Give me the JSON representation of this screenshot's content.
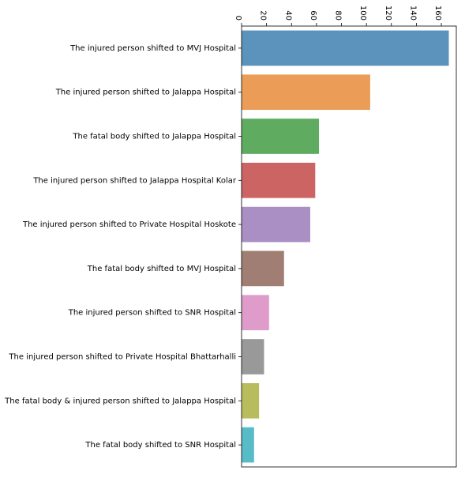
{
  "chart_data": {
    "type": "bar",
    "orientation": "horizontal",
    "xaxis_position": "top",
    "tick_label_rotation": -90,
    "title": "",
    "xlabel": "",
    "ylabel": "",
    "xlim": [
      0,
      172
    ],
    "xticks": [
      0,
      20,
      40,
      60,
      80,
      100,
      120,
      140,
      160
    ],
    "grid": false,
    "categories": [
      "The injured person shifted to MVJ Hospital",
      "The injured person shifted to Jalappa Hospital",
      "The fatal body shifted to Jalappa Hospital",
      "The injured person shifted to Jalappa Hospital Kolar",
      "The injured person shifted to Private Hospital Hoskote",
      "The fatal body shifted to MVJ Hospital",
      "The injured person shifted to SNR Hospital",
      "The injured person shifted to Private Hospital Bhattarhalli",
      "The fatal body & injured person shifted to Jalappa Hospital",
      "The fatal body shifted to SNR Hospital"
    ],
    "values": [
      166,
      103,
      62,
      59,
      55,
      34,
      22,
      18,
      14,
      10
    ],
    "colors": [
      "#5b93bc",
      "#eb9c56",
      "#5fab5f",
      "#cd6464",
      "#a98fc4",
      "#a07e74",
      "#df9ccb",
      "#999999",
      "#b9bc5c",
      "#58bcc8"
    ]
  }
}
